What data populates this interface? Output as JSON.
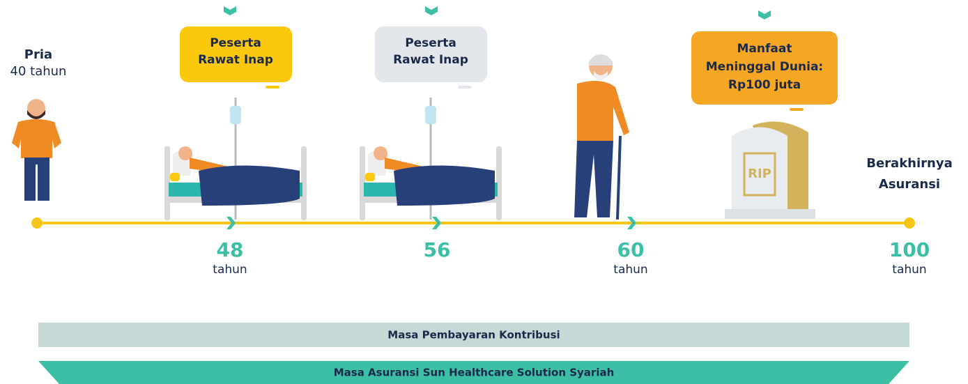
{
  "person": {
    "label": "Pria",
    "age": "40 tahun"
  },
  "bubbles": [
    {
      "lines": [
        "Peserta",
        "Rawat Inap"
      ]
    },
    {
      "lines": [
        "Peserta",
        "Rawat Inap"
      ]
    },
    {
      "lines": [
        "Manfaat",
        "Meninggal Dunia:",
        "Rp100 juta"
      ]
    }
  ],
  "milestones": [
    {
      "age": "48",
      "unit": "tahun"
    },
    {
      "age": "56"
    },
    {
      "age": "60",
      "unit": "tahun"
    },
    {
      "age": "100",
      "unit": "tahun"
    }
  ],
  "end_label": [
    "Berakhirnya",
    "Asuransi"
  ],
  "periods": [
    "Masa Pembayaran Kontribusi",
    "Masa Asuransi Sun Healthcare Solution Syariah"
  ]
}
